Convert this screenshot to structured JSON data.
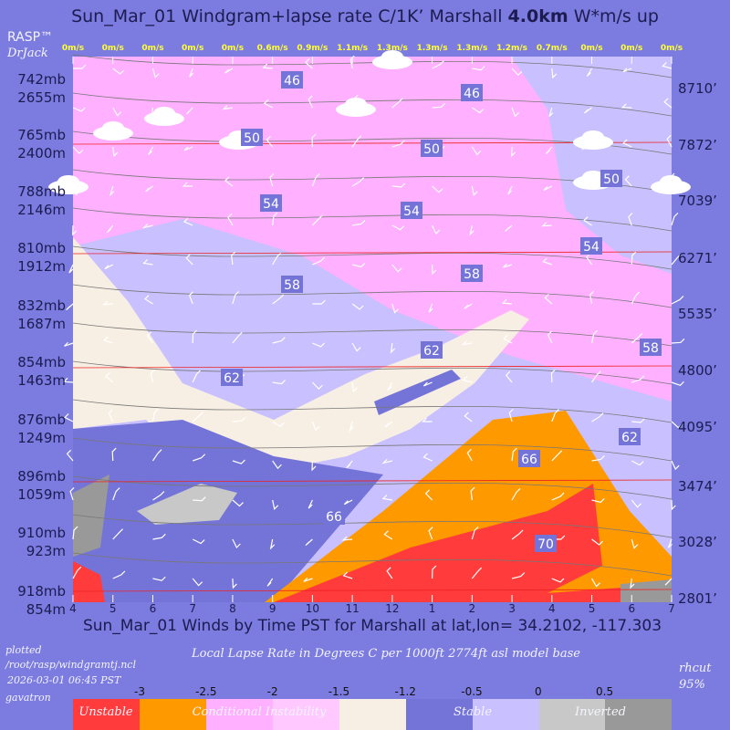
{
  "header": {
    "title_prefix": "Sun_Mar_01 Windgram+lapse rate C/1K’  Marshall",
    "title_bold": "4.0km",
    "title_suffix": "W*m/s up",
    "brand": "RASP™",
    "author": "DrJack"
  },
  "top_labels": [
    "0m/s",
    "0m/s",
    "0m/s",
    "0m/s",
    "0m/s",
    "0.6m/s",
    "0.9m/s",
    "1.1m/s",
    "1.3m/s",
    "1.3m/s",
    "1.3m/s",
    "1.2m/s",
    "0.7m/s",
    "0m/s",
    "0m/s",
    "0m/s"
  ],
  "x_labels": [
    "4",
    "5",
    "6",
    "7",
    "8",
    "9",
    "10",
    "11",
    "12",
    "1",
    "2",
    "3",
    "4",
    "5",
    "6",
    "7"
  ],
  "left_axis": [
    {
      "mb": "742mb",
      "m": "2655m"
    },
    {
      "mb": "765mb",
      "m": "2400m"
    },
    {
      "mb": "788mb",
      "m": "2146m"
    },
    {
      "mb": "810mb",
      "m": "1912m"
    },
    {
      "mb": "832mb",
      "m": "1687m"
    },
    {
      "mb": "854mb",
      "m": "1463m"
    },
    {
      "mb": "876mb",
      "m": "1249m"
    },
    {
      "mb": "896mb",
      "m": "1059m"
    },
    {
      "mb": "910mb",
      "m": "923m"
    },
    {
      "mb": "918mb",
      "m": "854m"
    }
  ],
  "right_axis": [
    "8710’",
    "7872’",
    "7039’",
    "6271’",
    "5535’",
    "4800’",
    "4095’",
    "3474’",
    "3028’",
    "2801’"
  ],
  "contour_labels": [
    "46",
    "46",
    "50",
    "50",
    "50",
    "54",
    "54",
    "54",
    "58",
    "58",
    "58",
    "62",
    "62",
    "62",
    "66",
    "66",
    "70"
  ],
  "x_title": "Sun_Mar_01 Winds by Time PST for Marshall at lat,lon= 34.2102, -117.303",
  "footer": {
    "plotted": "plotted",
    "path": "/root/rasp/windgramtj.ncl",
    "date": "2026-03-01 06:45 PST",
    "host": "gavatron",
    "caption": "Local Lapse Rate in Degrees C per 1000ft  2774ft asl model base",
    "rhcut": "rhcut",
    "rh": "95%"
  },
  "legend": {
    "ticks": [
      "-3",
      "-2.5",
      "-2",
      "-1.5",
      "-1.2",
      "-0.5",
      "0",
      "0.5"
    ],
    "labels": [
      "Unstable",
      "Conditional Instability",
      "Stable",
      "Inverted"
    ]
  }
}
